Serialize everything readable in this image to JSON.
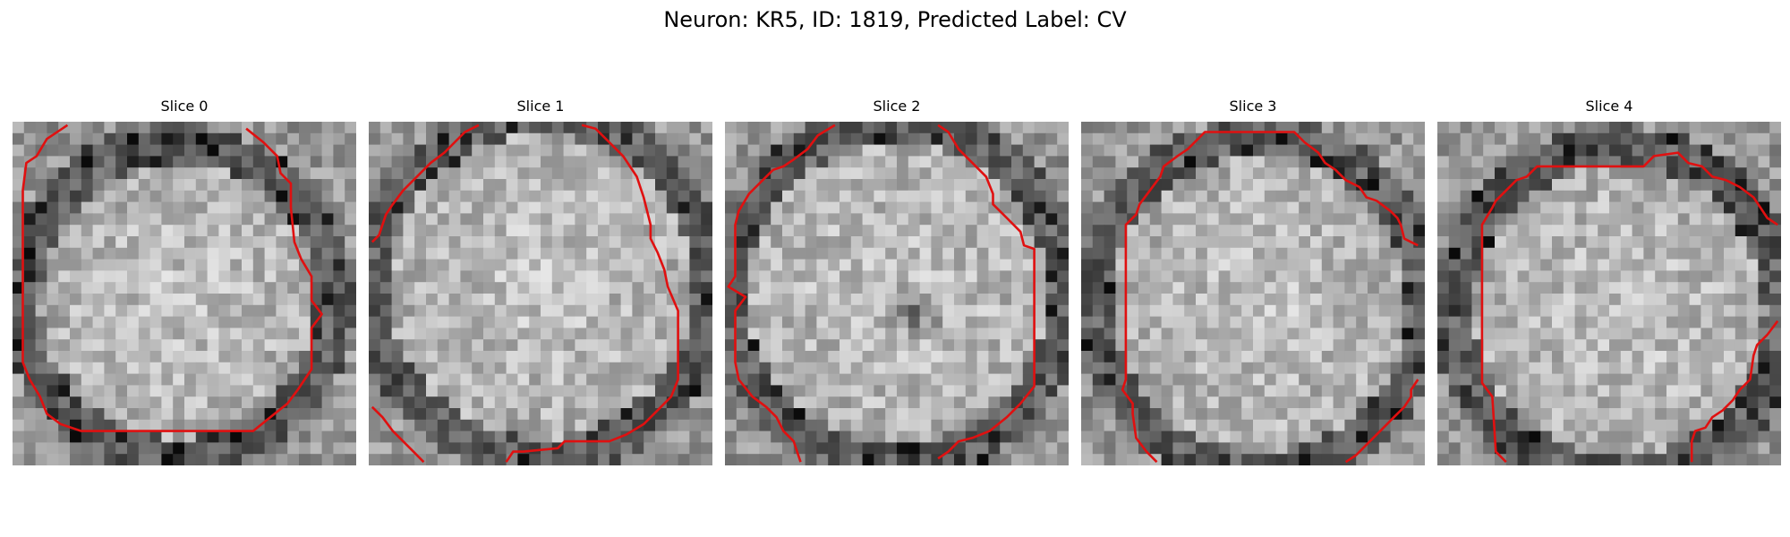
{
  "figure": {
    "title": "Neuron: KR5, ID: 1819, Predicted Label: CV"
  },
  "contour_color": "#e01010",
  "grid_size": 30,
  "slices": [
    {
      "title": "Slice 0",
      "bright_radius": 0.4,
      "dark_ring_radius": 0.46,
      "center": [
        0.48,
        0.52
      ],
      "contours": [
        [
          [
            0.16,
            0.01
          ],
          [
            0.1,
            0.05
          ],
          [
            0.07,
            0.1
          ],
          [
            0.04,
            0.12
          ],
          [
            0.03,
            0.2
          ],
          [
            0.03,
            0.55
          ],
          [
            0.03,
            0.7
          ],
          [
            0.05,
            0.75
          ],
          [
            0.08,
            0.8
          ],
          [
            0.1,
            0.85
          ],
          [
            0.14,
            0.88
          ],
          [
            0.2,
            0.9
          ],
          [
            0.26,
            0.9
          ],
          [
            0.7,
            0.9
          ],
          [
            0.75,
            0.86
          ],
          [
            0.8,
            0.82
          ],
          [
            0.83,
            0.78
          ],
          [
            0.87,
            0.72
          ],
          [
            0.87,
            0.6
          ],
          [
            0.9,
            0.56
          ],
          [
            0.87,
            0.52
          ],
          [
            0.87,
            0.45
          ],
          [
            0.84,
            0.4
          ],
          [
            0.82,
            0.35
          ],
          [
            0.81,
            0.25
          ],
          [
            0.81,
            0.18
          ],
          [
            0.78,
            0.15
          ],
          [
            0.77,
            0.1
          ],
          [
            0.73,
            0.06
          ],
          [
            0.68,
            0.02
          ]
        ]
      ]
    },
    {
      "title": "Slice 1",
      "bright_radius": 0.44,
      "dark_ring_radius": 0.5,
      "center": [
        0.5,
        0.48
      ],
      "contours": [
        [
          [
            0.01,
            0.35
          ],
          [
            0.03,
            0.33
          ],
          [
            0.05,
            0.27
          ],
          [
            0.07,
            0.24
          ],
          [
            0.1,
            0.2
          ],
          [
            0.14,
            0.16
          ],
          [
            0.18,
            0.12
          ],
          [
            0.22,
            0.09
          ],
          [
            0.25,
            0.06
          ],
          [
            0.28,
            0.03
          ],
          [
            0.32,
            0.01
          ]
        ],
        [
          [
            0.62,
            0.01
          ],
          [
            0.66,
            0.02
          ],
          [
            0.7,
            0.06
          ],
          [
            0.74,
            0.1
          ],
          [
            0.78,
            0.16
          ],
          [
            0.8,
            0.22
          ],
          [
            0.82,
            0.3
          ],
          [
            0.82,
            0.34
          ],
          [
            0.84,
            0.38
          ],
          [
            0.86,
            0.43
          ],
          [
            0.87,
            0.48
          ],
          [
            0.9,
            0.55
          ],
          [
            0.9,
            0.67
          ],
          [
            0.9,
            0.75
          ],
          [
            0.88,
            0.8
          ],
          [
            0.84,
            0.84
          ],
          [
            0.8,
            0.88
          ],
          [
            0.75,
            0.91
          ],
          [
            0.7,
            0.93
          ],
          [
            0.57,
            0.93
          ],
          [
            0.55,
            0.95
          ],
          [
            0.45,
            0.96
          ],
          [
            0.42,
            0.96
          ],
          [
            0.4,
            0.99
          ]
        ],
        [
          [
            0.01,
            0.83
          ],
          [
            0.04,
            0.86
          ],
          [
            0.07,
            0.9
          ],
          [
            0.1,
            0.93
          ],
          [
            0.13,
            0.96
          ],
          [
            0.16,
            0.99
          ]
        ]
      ]
    },
    {
      "title": "Slice 2",
      "bright_radius": 0.44,
      "dark_ring_radius": 0.5,
      "center": [
        0.5,
        0.5
      ],
      "dark_blob": [
        0.55,
        0.55,
        0.1
      ],
      "contours": [
        [
          [
            0.32,
            0.01
          ],
          [
            0.27,
            0.04
          ],
          [
            0.24,
            0.08
          ],
          [
            0.2,
            0.11
          ],
          [
            0.17,
            0.13
          ],
          [
            0.14,
            0.14
          ],
          [
            0.1,
            0.18
          ],
          [
            0.07,
            0.21
          ],
          [
            0.04,
            0.26
          ],
          [
            0.03,
            0.3
          ],
          [
            0.03,
            0.45
          ],
          [
            0.01,
            0.48
          ],
          [
            0.06,
            0.51
          ],
          [
            0.03,
            0.55
          ],
          [
            0.03,
            0.7
          ],
          [
            0.04,
            0.75
          ],
          [
            0.08,
            0.8
          ],
          [
            0.12,
            0.83
          ],
          [
            0.15,
            0.86
          ],
          [
            0.17,
            0.9
          ],
          [
            0.2,
            0.93
          ],
          [
            0.22,
            0.99
          ]
        ],
        [
          [
            0.62,
            0.01
          ],
          [
            0.65,
            0.03
          ],
          [
            0.68,
            0.08
          ],
          [
            0.72,
            0.12
          ],
          [
            0.76,
            0.16
          ],
          [
            0.78,
            0.21
          ],
          [
            0.78,
            0.24
          ],
          [
            0.82,
            0.28
          ],
          [
            0.86,
            0.32
          ],
          [
            0.87,
            0.36
          ],
          [
            0.9,
            0.37
          ],
          [
            0.9,
            0.77
          ],
          [
            0.86,
            0.82
          ],
          [
            0.82,
            0.86
          ],
          [
            0.77,
            0.9
          ],
          [
            0.72,
            0.92
          ],
          [
            0.68,
            0.93
          ],
          [
            0.65,
            0.96
          ],
          [
            0.62,
            0.98
          ]
        ]
      ]
    },
    {
      "title": "Slice 3",
      "bright_radius": 0.43,
      "dark_ring_radius": 0.49,
      "center": [
        0.52,
        0.53
      ],
      "contours": [
        [
          [
            0.22,
            0.99
          ],
          [
            0.19,
            0.96
          ],
          [
            0.16,
            0.92
          ],
          [
            0.15,
            0.85
          ],
          [
            0.15,
            0.82
          ],
          [
            0.12,
            0.78
          ],
          [
            0.13,
            0.75
          ],
          [
            0.13,
            0.3
          ],
          [
            0.16,
            0.27
          ],
          [
            0.17,
            0.24
          ],
          [
            0.2,
            0.2
          ],
          [
            0.23,
            0.16
          ],
          [
            0.24,
            0.13
          ],
          [
            0.28,
            0.1
          ],
          [
            0.31,
            0.08
          ],
          [
            0.34,
            0.05
          ],
          [
            0.36,
            0.03
          ],
          [
            0.62,
            0.03
          ],
          [
            0.65,
            0.06
          ],
          [
            0.69,
            0.09
          ],
          [
            0.71,
            0.12
          ],
          [
            0.74,
            0.14
          ],
          [
            0.77,
            0.17
          ],
          [
            0.81,
            0.19
          ],
          [
            0.83,
            0.22
          ],
          [
            0.86,
            0.23
          ],
          [
            0.9,
            0.26
          ],
          [
            0.92,
            0.28
          ],
          [
            0.93,
            0.3
          ],
          [
            0.94,
            0.34
          ],
          [
            0.96,
            0.35
          ],
          [
            0.98,
            0.36
          ]
        ],
        [
          [
            0.98,
            0.75
          ],
          [
            0.96,
            0.78
          ],
          [
            0.96,
            0.8
          ],
          [
            0.94,
            0.83
          ],
          [
            0.91,
            0.86
          ],
          [
            0.88,
            0.89
          ],
          [
            0.85,
            0.92
          ],
          [
            0.82,
            0.95
          ],
          [
            0.8,
            0.97
          ],
          [
            0.77,
            0.99
          ]
        ]
      ]
    },
    {
      "title": "Slice 4",
      "bright_radius": 0.42,
      "dark_ring_radius": 0.49,
      "center": [
        0.53,
        0.55
      ],
      "contours": [
        [
          [
            0.2,
            0.99
          ],
          [
            0.17,
            0.96
          ],
          [
            0.16,
            0.8
          ],
          [
            0.13,
            0.76
          ],
          [
            0.13,
            0.3
          ],
          [
            0.16,
            0.25
          ],
          [
            0.17,
            0.23
          ],
          [
            0.2,
            0.2
          ],
          [
            0.23,
            0.17
          ],
          [
            0.26,
            0.16
          ],
          [
            0.29,
            0.13
          ],
          [
            0.6,
            0.13
          ],
          [
            0.63,
            0.1
          ],
          [
            0.7,
            0.09
          ],
          [
            0.73,
            0.12
          ],
          [
            0.77,
            0.13
          ],
          [
            0.8,
            0.16
          ],
          [
            0.84,
            0.17
          ],
          [
            0.88,
            0.19
          ],
          [
            0.92,
            0.22
          ],
          [
            0.94,
            0.25
          ],
          [
            0.96,
            0.28
          ],
          [
            0.99,
            0.3
          ]
        ],
        [
          [
            0.99,
            0.58
          ],
          [
            0.96,
            0.62
          ],
          [
            0.93,
            0.65
          ],
          [
            0.92,
            0.68
          ],
          [
            0.91,
            0.75
          ],
          [
            0.88,
            0.78
          ],
          [
            0.86,
            0.81
          ],
          [
            0.83,
            0.84
          ],
          [
            0.8,
            0.86
          ],
          [
            0.78,
            0.89
          ],
          [
            0.75,
            0.9
          ],
          [
            0.74,
            0.93
          ],
          [
            0.74,
            0.99
          ]
        ]
      ]
    }
  ]
}
